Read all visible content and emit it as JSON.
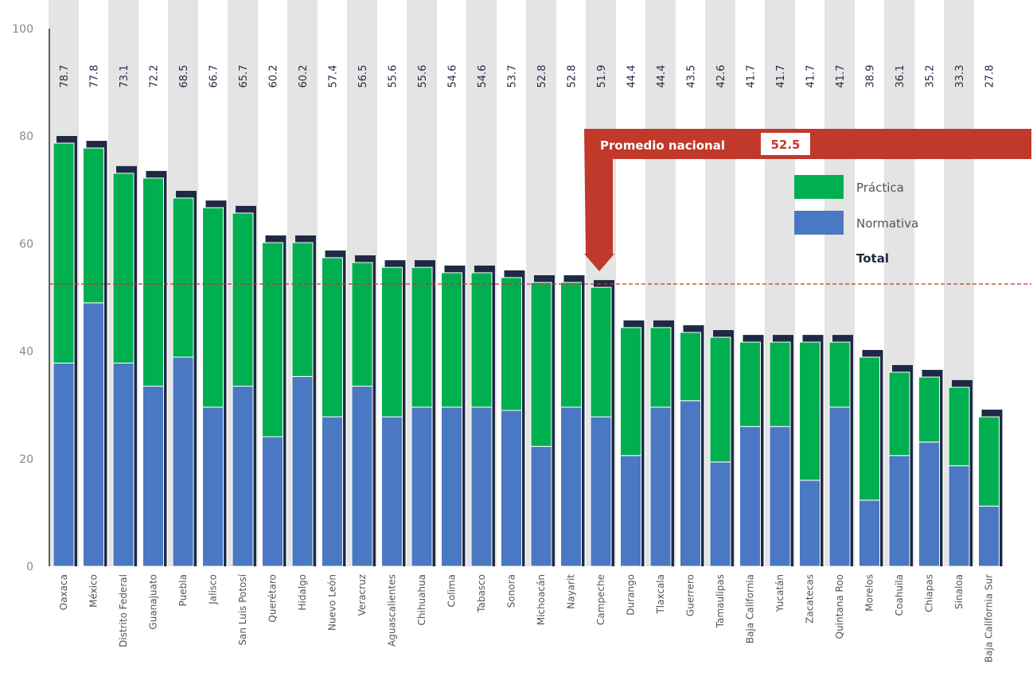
{
  "chart_data": {
    "type": "bar",
    "stacked": true,
    "ylim": [
      0,
      100
    ],
    "yticks": [
      0,
      20,
      40,
      60,
      80,
      100
    ],
    "grid": false,
    "legend_position": "top-right",
    "categories": [
      "Oaxaca",
      "México",
      "Distrito Federal",
      "Guanajuato",
      "Puebla",
      "Jalisco",
      "San Luis Potosí",
      "Querétaro",
      "Hidalgo",
      "Nuevo León",
      "Veracruz",
      "Aguascalientes",
      "Chihuahua",
      "Colima",
      "Tabasco",
      "Sonora",
      "Michoacán",
      "Nayarit",
      "Campeche",
      "Durango",
      "Tlaxcala",
      "Guerrero",
      "Tamaulipas",
      "Baja California",
      "Yucatán",
      "Zacatecas",
      "Quintana Roo",
      "Morelos",
      "Coahuila",
      "Chiapas",
      "Sinaloa",
      "Baja California Sur"
    ],
    "totals": [
      78.7,
      77.8,
      73.1,
      72.2,
      68.5,
      66.7,
      65.7,
      60.2,
      60.2,
      57.4,
      56.5,
      55.6,
      55.6,
      54.6,
      54.6,
      53.7,
      52.8,
      52.8,
      51.9,
      44.4,
      44.4,
      43.5,
      42.6,
      41.7,
      41.7,
      41.7,
      41.7,
      38.9,
      36.1,
      35.2,
      33.3,
      27.8
    ],
    "total_labels": [
      "78.7",
      "77.8",
      "73.1",
      "72.2",
      "68.5",
      "66.7",
      "65.7",
      "60.2",
      "60.2",
      "57.4",
      "56.5",
      "55.6",
      "55.6",
      "54.6",
      "54.6",
      "53.7",
      "52.8",
      "52.8",
      "51.9",
      "44.4",
      "44.4",
      "43.5",
      "42.6",
      "41.7",
      "41.7",
      "41.7",
      "41.7",
      "38.9",
      "36.1",
      "35.2",
      "33.3",
      "27.8"
    ],
    "series": [
      {
        "name": "Normativa",
        "color": "#4a78c2",
        "values": [
          37.8,
          49.0,
          37.8,
          33.5,
          38.9,
          29.6,
          33.5,
          24.1,
          35.3,
          27.8,
          33.5,
          27.8,
          29.6,
          29.6,
          29.6,
          29.0,
          22.3,
          29.6,
          27.8,
          20.6,
          29.6,
          30.8,
          19.4,
          26.0,
          26.0,
          16.0,
          29.6,
          12.3,
          20.6,
          23.1,
          18.7,
          11.2
        ]
      },
      {
        "name": "Práctica",
        "color": "#00b050",
        "values": [
          40.9,
          28.8,
          35.3,
          38.7,
          29.6,
          37.1,
          32.2,
          36.1,
          24.9,
          29.6,
          23.0,
          27.8,
          26.0,
          25.0,
          25.0,
          24.7,
          30.5,
          23.2,
          24.1,
          23.8,
          14.8,
          12.7,
          23.2,
          15.7,
          15.7,
          25.7,
          12.1,
          26.6,
          15.5,
          12.1,
          14.6,
          16.6
        ]
      }
    ],
    "average": {
      "label": "Promedio nacional",
      "value": 52.5,
      "value_label": "52.5",
      "color": "#c0392b"
    },
    "legend": {
      "practica": "Práctica",
      "normativa": "Normativa",
      "total": "Total"
    },
    "colors": {
      "practica": "#00b050",
      "normativa": "#4a78c2",
      "total": "#1e2a44",
      "stripe": "#e4e4e4",
      "average": "#c0392b"
    }
  }
}
